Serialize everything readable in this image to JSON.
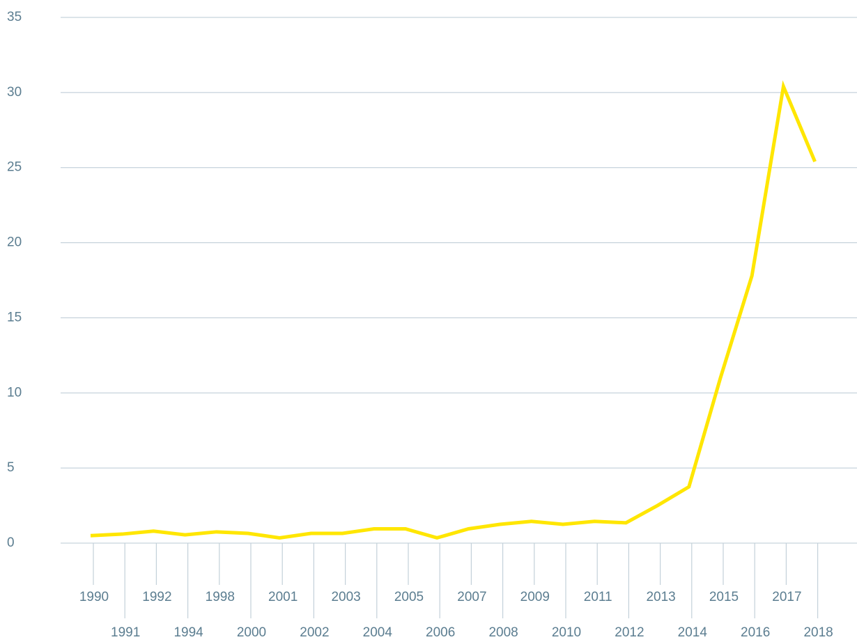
{
  "chart_data": {
    "type": "line",
    "categories": [
      "1990",
      "1991",
      "1992",
      "1994",
      "1998",
      "2000",
      "2001",
      "2002",
      "2003",
      "2004",
      "2005",
      "2006",
      "2007",
      "2008",
      "2009",
      "2010",
      "2011",
      "2012",
      "2013",
      "2014",
      "2015",
      "2016",
      "2017",
      "2018"
    ],
    "values": [
      0.5,
      0.6,
      0.8,
      0.55,
      0.75,
      0.65,
      0.35,
      0.65,
      0.65,
      0.95,
      0.95,
      0.35,
      0.95,
      1.25,
      1.45,
      1.25,
      1.45,
      1.35,
      2.5,
      3.75,
      11,
      17.8,
      30.4,
      25.4
    ],
    "color": "#ffe600",
    "ylim": [
      0,
      35
    ],
    "yticks": [
      0,
      5,
      10,
      15,
      20,
      25,
      30,
      35
    ],
    "grid": true
  }
}
